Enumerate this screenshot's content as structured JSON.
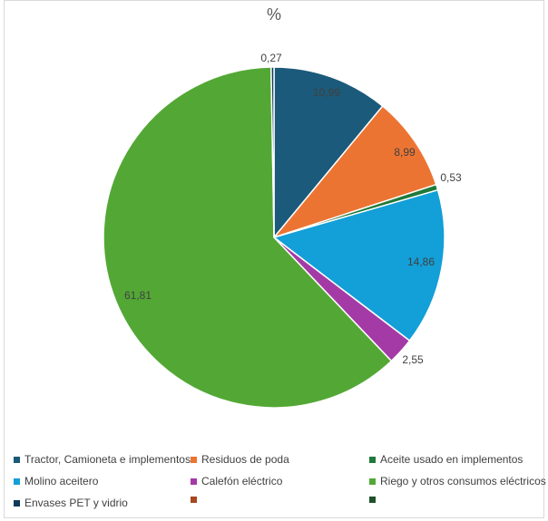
{
  "chart_data": {
    "type": "pie",
    "title": "%",
    "categories": [
      "Tractor, Camioneta e implementos",
      "Residuos de poda",
      "Aceite usado en implementos",
      "Molino aceitero",
      "Calefón eléctrico",
      "Riego y otros consumos eléctricos",
      "Envases PET y vidrio"
    ],
    "values": [
      10.99,
      8.99,
      0.53,
      14.86,
      2.55,
      61.81,
      0.27
    ],
    "value_labels": [
      "10,99",
      "8,99",
      "0,53",
      "14,86",
      "2,55",
      "61,81",
      "0,27"
    ],
    "colors": [
      "#1b5a7a",
      "#ec7432",
      "#207a3a",
      "#139fd7",
      "#a43aa6",
      "#53a835",
      "#0f3a5c"
    ],
    "extra_legend_colors": [
      "#a8481f",
      "#1e5228"
    ],
    "legend_position": "bottom"
  }
}
